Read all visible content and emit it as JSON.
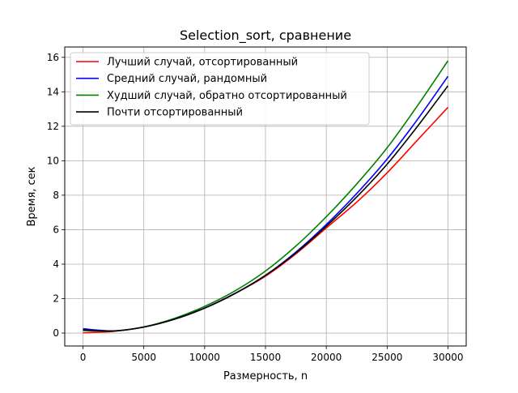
{
  "chart_data": {
    "type": "line",
    "title": "Selection_sort, сравнение",
    "xlabel": "Размерность, n",
    "ylabel": "Время, сек",
    "xlim": [
      -1500,
      31500
    ],
    "ylim": [
      -0.75,
      16.6
    ],
    "xticks": [
      0,
      5000,
      10000,
      15000,
      20000,
      25000,
      30000
    ],
    "yticks": [
      0,
      2,
      4,
      6,
      8,
      10,
      12,
      14,
      16
    ],
    "grid": true,
    "legend_position": "upper-left",
    "x": [
      0,
      2500,
      5000,
      7500,
      10000,
      12500,
      15000,
      17500,
      20000,
      22500,
      25000,
      27500,
      30000
    ],
    "series": [
      {
        "name": "Лучший случай, отсортированный",
        "color": "#ff0000",
        "values": [
          0.02,
          0.1,
          0.35,
          0.8,
          1.45,
          2.3,
          3.3,
          4.6,
          6.1,
          7.6,
          9.3,
          11.2,
          13.1
        ]
      },
      {
        "name": "Средний случай, рандомный",
        "color": "#0000ff",
        "values": [
          0.25,
          0.13,
          0.35,
          0.8,
          1.45,
          2.3,
          3.35,
          4.7,
          6.3,
          8.1,
          10.1,
          12.4,
          14.9
        ]
      },
      {
        "name": "Худший случай, обратно отсортированный",
        "color": "#008000",
        "values": [
          0.15,
          0.12,
          0.36,
          0.85,
          1.55,
          2.45,
          3.6,
          5.05,
          6.75,
          8.65,
          10.75,
          13.2,
          15.8
        ]
      },
      {
        "name": "Почти отсортированный",
        "color": "#000000",
        "values": [
          0.18,
          0.12,
          0.35,
          0.8,
          1.45,
          2.3,
          3.35,
          4.65,
          6.2,
          7.9,
          9.8,
          12.0,
          14.35
        ]
      }
    ]
  }
}
